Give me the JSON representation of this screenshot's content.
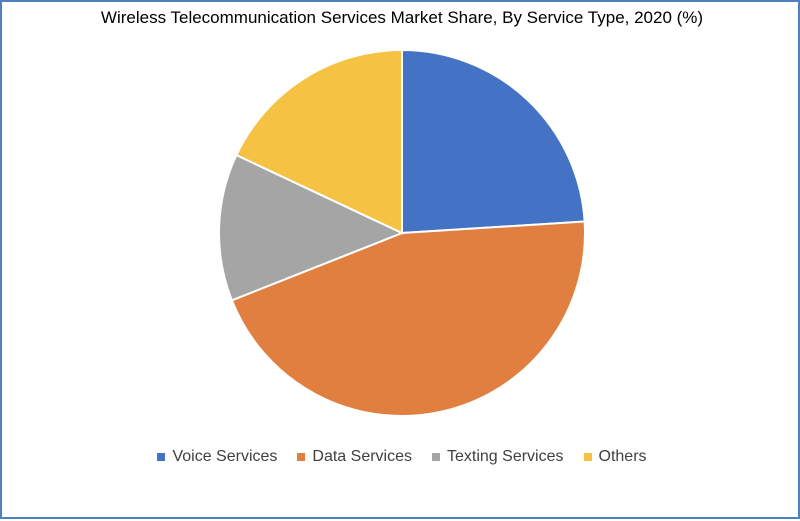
{
  "chart_data": {
    "type": "pie",
    "title": "Wireless Telecommunication Services Market Share, By Service Type, 2020 (%)",
    "categories": [
      "Voice Services",
      "Data Services",
      "Texting Services",
      "Others"
    ],
    "values": [
      24,
      45,
      13,
      18
    ],
    "colors": [
      "#4472c4",
      "#e07f40",
      "#a5a5a5",
      "#f5c243"
    ],
    "legend_position": "bottom"
  }
}
